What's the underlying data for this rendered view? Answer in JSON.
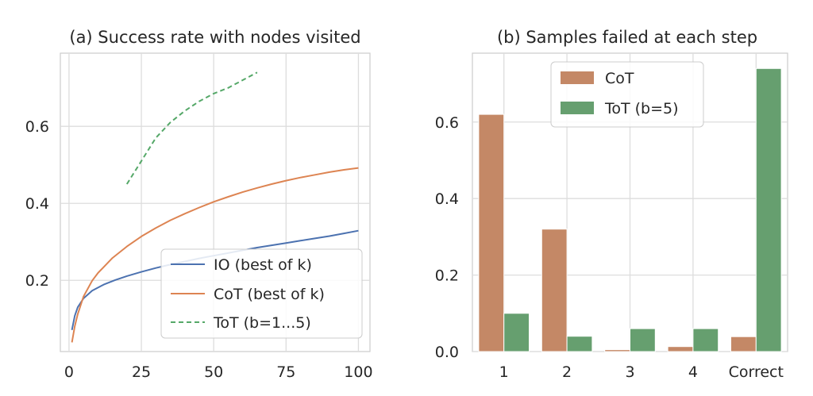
{
  "chart_data": [
    {
      "type": "line",
      "title": "(a) Success rate with nodes visited",
      "xlabel": "",
      "ylabel": "",
      "xlim": [
        -3,
        104
      ],
      "ylim": [
        0.015,
        0.79
      ],
      "x_ticks": [
        0,
        25,
        50,
        75,
        100
      ],
      "x_tick_labels": [
        "0",
        "25",
        "50",
        "75",
        "100"
      ],
      "y_ticks": [
        0.2,
        0.4,
        0.6
      ],
      "y_tick_labels": [
        "0.2",
        "0.4",
        "0.6"
      ],
      "grid": true,
      "legend_position": "lower-right",
      "series": [
        {
          "name": "IO (best of k)",
          "color": "#4c72b0",
          "style": "solid",
          "x": [
            1,
            2,
            3,
            5,
            8,
            12,
            16,
            20,
            25,
            30,
            35,
            40,
            45,
            50,
            55,
            60,
            65,
            70,
            75,
            80,
            85,
            90,
            95,
            100
          ],
          "y": [
            0.071,
            0.108,
            0.13,
            0.153,
            0.173,
            0.189,
            0.201,
            0.211,
            0.222,
            0.232,
            0.241,
            0.249,
            0.257,
            0.264,
            0.271,
            0.278,
            0.285,
            0.291,
            0.297,
            0.303,
            0.309,
            0.315,
            0.322,
            0.329
          ]
        },
        {
          "name": "CoT (best of k)",
          "color": "#dd8452",
          "style": "solid",
          "x": [
            1,
            2,
            3,
            5,
            8,
            10,
            15,
            20,
            25,
            30,
            35,
            40,
            45,
            50,
            55,
            60,
            65,
            70,
            75,
            80,
            85,
            90,
            95,
            100
          ],
          "y": [
            0.039,
            0.081,
            0.112,
            0.158,
            0.199,
            0.219,
            0.258,
            0.288,
            0.314,
            0.336,
            0.356,
            0.373,
            0.389,
            0.404,
            0.417,
            0.429,
            0.44,
            0.45,
            0.459,
            0.467,
            0.474,
            0.481,
            0.487,
            0.492
          ]
        },
        {
          "name": "ToT (b=1...5)",
          "color": "#55a868",
          "style": "dashed",
          "x": [
            20,
            25,
            30,
            35,
            40,
            45,
            50,
            55,
            60,
            65
          ],
          "y": [
            0.45,
            0.51,
            0.57,
            0.61,
            0.64,
            0.665,
            0.685,
            0.7,
            0.72,
            0.74
          ]
        }
      ]
    },
    {
      "type": "bar",
      "title": "(b) Samples failed at each step",
      "xlabel": "",
      "ylabel": "",
      "categories": [
        "1",
        "2",
        "3",
        "4",
        "Correct"
      ],
      "ylim": [
        0,
        0.78
      ],
      "y_ticks": [
        0.0,
        0.2,
        0.4,
        0.6
      ],
      "y_tick_labels": [
        "0.0",
        "0.2",
        "0.4",
        "0.6"
      ],
      "grid": true,
      "legend_position": "top-center",
      "series": [
        {
          "name": "CoT",
          "color": "#c48866",
          "values": [
            0.62,
            0.32,
            0.005,
            0.013,
            0.039
          ]
        },
        {
          "name": "ToT (b=5)",
          "color": "#669f6f",
          "values": [
            0.1,
            0.04,
            0.06,
            0.06,
            0.74
          ]
        }
      ]
    }
  ]
}
